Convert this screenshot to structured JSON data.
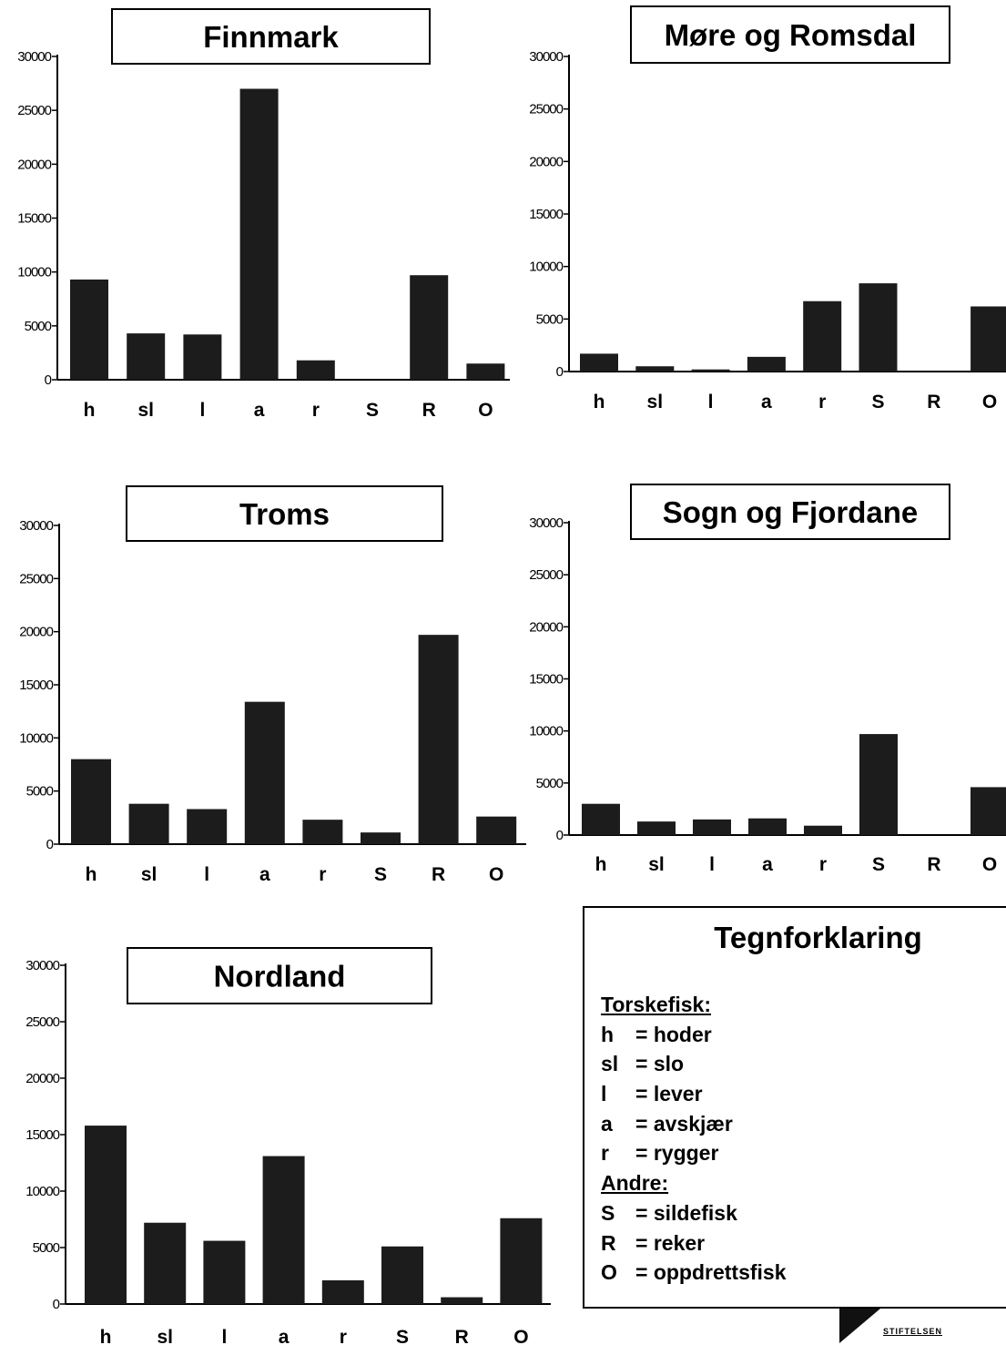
{
  "colors": {
    "bar": "#1c1c1c",
    "axis": "#000000",
    "background": "#ffffff"
  },
  "chart_data": [
    {
      "type": "bar",
      "title": "Finnmark",
      "categories": [
        "h",
        "sl",
        "l",
        "a",
        "r",
        "S",
        "R",
        "O"
      ],
      "values": [
        9300,
        4300,
        4200,
        27000,
        1800,
        0,
        9700,
        1500
      ],
      "yticks": [
        "0",
        "5000",
        "10000",
        "15000",
        "20000",
        "25000",
        "30000"
      ],
      "ylim": [
        0,
        30000
      ]
    },
    {
      "type": "bar",
      "title": "Møre og Romsdal",
      "categories": [
        "h",
        "sl",
        "l",
        "a",
        "r",
        "S",
        "R",
        "O"
      ],
      "values": [
        1700,
        500,
        200,
        1400,
        6700,
        8400,
        0,
        6200
      ],
      "yticks": [
        "0",
        "5000",
        "10000",
        "15000",
        "20000",
        "25000",
        "30000"
      ],
      "ylim": [
        0,
        30000
      ]
    },
    {
      "type": "bar",
      "title": "Troms",
      "categories": [
        "h",
        "sl",
        "l",
        "a",
        "r",
        "S",
        "R",
        "O"
      ],
      "values": [
        8000,
        3800,
        3300,
        13400,
        2300,
        1100,
        19700,
        2600
      ],
      "yticks": [
        "0",
        "5000",
        "10000",
        "15000",
        "20000",
        "25000",
        "30000"
      ],
      "ylim": [
        0,
        30000
      ]
    },
    {
      "type": "bar",
      "title": "Sogn og Fjordane",
      "categories": [
        "h",
        "sl",
        "l",
        "a",
        "r",
        "S",
        "R",
        "O"
      ],
      "values": [
        3000,
        1300,
        1500,
        1600,
        900,
        9700,
        0,
        4600
      ],
      "yticks": [
        "0",
        "5000",
        "10000",
        "15000",
        "20000",
        "25000",
        "30000"
      ],
      "ylim": [
        0,
        30000
      ]
    },
    {
      "type": "bar",
      "title": "Nordland",
      "categories": [
        "h",
        "sl",
        "l",
        "a",
        "r",
        "S",
        "R",
        "O"
      ],
      "values": [
        15800,
        7200,
        5600,
        13100,
        2100,
        5100,
        600,
        7600
      ],
      "yticks": [
        "0",
        "5000",
        "10000",
        "15000",
        "20000",
        "25000",
        "30000"
      ],
      "ylim": [
        0,
        30000
      ]
    }
  ],
  "legend": {
    "title": "Tegnforklaring",
    "groups": [
      {
        "heading": "Torskefisk:",
        "entries": [
          {
            "abbr": "h",
            "text": "= hoder"
          },
          {
            "abbr": "sl",
            "text": "= slo"
          },
          {
            "abbr": "l",
            "text": "= lever"
          },
          {
            "abbr": "a",
            "text": "= avskjær"
          },
          {
            "abbr": "r",
            "text": "= rygger"
          }
        ]
      },
      {
        "heading": "Andre:",
        "entries": [
          {
            "abbr": "S",
            "text": "= sildefisk"
          },
          {
            "abbr": "R",
            "text": "= reker"
          },
          {
            "abbr": "O",
            "text": "= oppdrettsfisk"
          }
        ]
      }
    ]
  },
  "logo": {
    "text": "STIFTELSEN"
  }
}
